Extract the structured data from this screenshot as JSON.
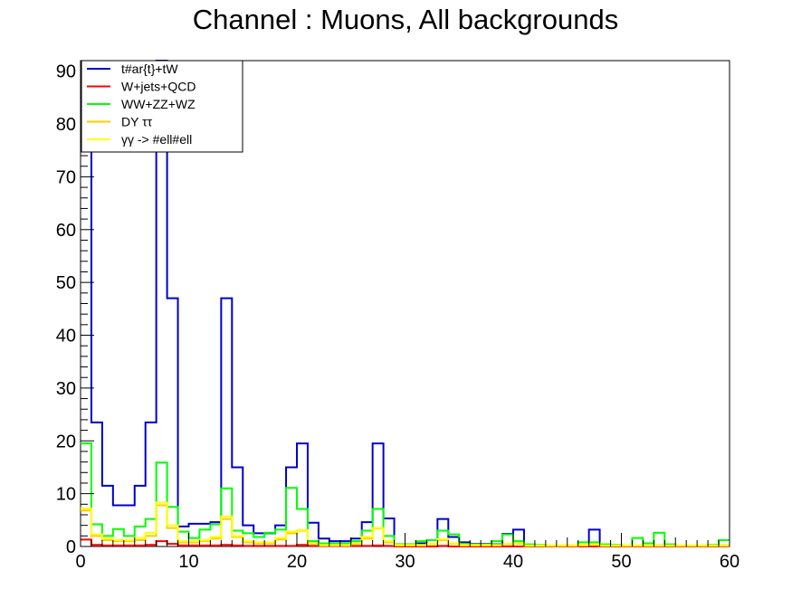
{
  "chart_data": {
    "type": "line",
    "title": "Channel : Muons, All backgrounds",
    "xlabel": "",
    "ylabel": "",
    "xlim": [
      0,
      60
    ],
    "ylim": [
      0,
      92
    ],
    "x_ticks": [
      0,
      10,
      20,
      30,
      40,
      50,
      60
    ],
    "y_ticks": [
      0,
      10,
      20,
      30,
      40,
      50,
      60,
      70,
      80,
      90
    ],
    "bin_width": 1,
    "legend_position": "top-left",
    "series": [
      {
        "name": "t#ar{t}+tW",
        "color": "#0000cc",
        "values": [
          75,
          23.5,
          11.5,
          7.8,
          7.8,
          11.5,
          23.5,
          92,
          47,
          3.8,
          4.3,
          4.3,
          4.6,
          47,
          15,
          4,
          2.5,
          2.5,
          4,
          15,
          19.5,
          4.5,
          1.5,
          1,
          1,
          1.5,
          4.6,
          19.5,
          5.3,
          0.4,
          0.4,
          0.6,
          1.2,
          5.2,
          1.8,
          0.8,
          0.5,
          0.5,
          0.4,
          2.4,
          3.2,
          0.3,
          0.1,
          0.1,
          0.1,
          0.1,
          0.2,
          3.2,
          0.2,
          0.1,
          0.1,
          0.1,
          0.1,
          0.2,
          0.2,
          0.1,
          0.1,
          0.1,
          0.1,
          0.2
        ]
      },
      {
        "name": "W+jets+QCD",
        "color": "#ff0000",
        "values": [
          1.3,
          0.3,
          0.2,
          0.2,
          0.2,
          0.2,
          0.3,
          1.0,
          0.5,
          0.2,
          0.2,
          0.2,
          0.2,
          0.3,
          0.2,
          0.1,
          0.1,
          0.1,
          0.1,
          0.1,
          0.3,
          0.1,
          0.1,
          0.1,
          0.1,
          0.1,
          0.1,
          0.2,
          0.1,
          0,
          0,
          0,
          0,
          0.1,
          0,
          0,
          0,
          0,
          0,
          0,
          0,
          0,
          0,
          0,
          0,
          0,
          0,
          0,
          0,
          0,
          0,
          0,
          0,
          0,
          0,
          0,
          0,
          0,
          0,
          0
        ]
      },
      {
        "name": "WW+ZZ+WZ",
        "color": "#00ff00",
        "values": [
          19.5,
          4.2,
          2.0,
          3.3,
          2.0,
          3.8,
          5.2,
          15.9,
          7.5,
          2.8,
          1.6,
          3.2,
          4.2,
          11.0,
          3.0,
          2.5,
          1.8,
          2.6,
          3.2,
          11.1,
          7.1,
          1.0,
          0.6,
          0.6,
          0.6,
          1.0,
          3.0,
          7.1,
          2.0,
          0.4,
          0.4,
          1.0,
          1.2,
          3.0,
          2.3,
          0.5,
          0.4,
          0.4,
          1.0,
          2.3,
          1.0,
          0.4,
          0.3,
          0.1,
          0.1,
          0.2,
          0.8,
          0.8,
          0.4,
          0.3,
          0.1,
          1.6,
          0.6,
          2.6,
          0.4,
          0.1,
          0.1,
          0.1,
          0.3,
          1.2
        ]
      },
      {
        "name": "DY ττ",
        "color": "#ffcc00",
        "values": [
          6.8,
          2.0,
          1.2,
          1.0,
          1.0,
          1.2,
          2.0,
          7.8,
          3.5,
          0.8,
          0.8,
          1.0,
          1.5,
          5.2,
          1.8,
          0.8,
          0.6,
          0.6,
          1.3,
          2.5,
          3.0,
          0.5,
          0.2,
          0.2,
          0.2,
          0.5,
          1.5,
          3.4,
          0.8,
          0.2,
          0.2,
          0.2,
          0.4,
          1.2,
          0.5,
          0.2,
          0.2,
          0.2,
          0.2,
          0.4,
          0.5,
          0.1,
          0.1,
          0.1,
          0.1,
          0.1,
          0.2,
          0.3,
          0.1,
          0.1,
          0.1,
          0.1,
          0.1,
          0.1,
          0.1,
          0.1,
          0.1,
          0.1,
          0.1,
          0.1
        ]
      },
      {
        "name": "γγ -> #ell#ell",
        "color": "#ffff00",
        "values": [
          7.2,
          2.3,
          1.5,
          1.2,
          1.2,
          1.6,
          2.6,
          8.3,
          4.0,
          1.0,
          1.0,
          1.2,
          1.8,
          5.7,
          2.0,
          1.0,
          0.8,
          0.8,
          1.6,
          2.8,
          3.1,
          0.6,
          0.3,
          0.3,
          0.3,
          0.6,
          1.8,
          3.5,
          1.0,
          0.3,
          0.3,
          0.3,
          0.5,
          1.4,
          0.6,
          0.3,
          0.3,
          0.3,
          0.3,
          0.5,
          0.6,
          0.2,
          0.2,
          0.2,
          0.2,
          0.2,
          0.3,
          0.4,
          0.2,
          0.2,
          0.2,
          0.2,
          0.2,
          0.2,
          0.2,
          0.2,
          0.2,
          0.2,
          0.2,
          0.2
        ]
      }
    ]
  }
}
